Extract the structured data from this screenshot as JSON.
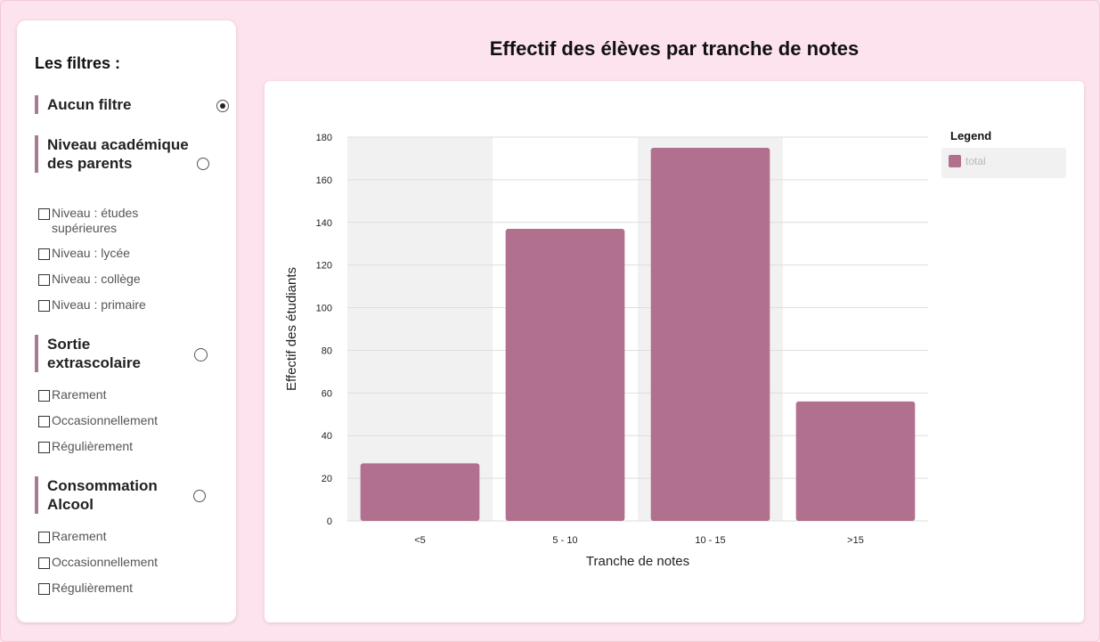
{
  "sidebar": {
    "title": "Les filtres :",
    "sections": [
      {
        "label": "Aucun filtre",
        "selected": true,
        "options": []
      },
      {
        "label": "Niveau académique des parents",
        "selected": false,
        "options": [
          "Niveau : études supérieures",
          "Niveau : lycée",
          "Niveau : collège",
          "Niveau : primaire"
        ]
      },
      {
        "label": "Sortie extrascolaire",
        "selected": false,
        "options": [
          "Rarement",
          "Occasionnellement",
          "Régulièrement"
        ]
      },
      {
        "label": "Consommation Alcool",
        "selected": false,
        "options": [
          "Rarement",
          "Occasionnellement",
          "Régulièrement"
        ]
      }
    ]
  },
  "colors": {
    "bar": "#b0708e",
    "background": "#fde3ee",
    "band": "#f1f1f1"
  },
  "chart_data": {
    "type": "bar",
    "title": "Effectif des élèves par tranche de notes",
    "xlabel": "Tranche de notes",
    "ylabel": "Effectif des étudiants",
    "categories": [
      "<5",
      "5 - 10",
      "10 - 15",
      ">15"
    ],
    "series": [
      {
        "name": "total",
        "values": [
          27,
          137,
          175,
          56
        ]
      }
    ],
    "ylim": [
      0,
      180
    ],
    "yticks": [
      0,
      20,
      40,
      60,
      80,
      100,
      120,
      140,
      160,
      180
    ],
    "grid": true,
    "legend": {
      "title": "Legend",
      "position": "top-right"
    }
  }
}
